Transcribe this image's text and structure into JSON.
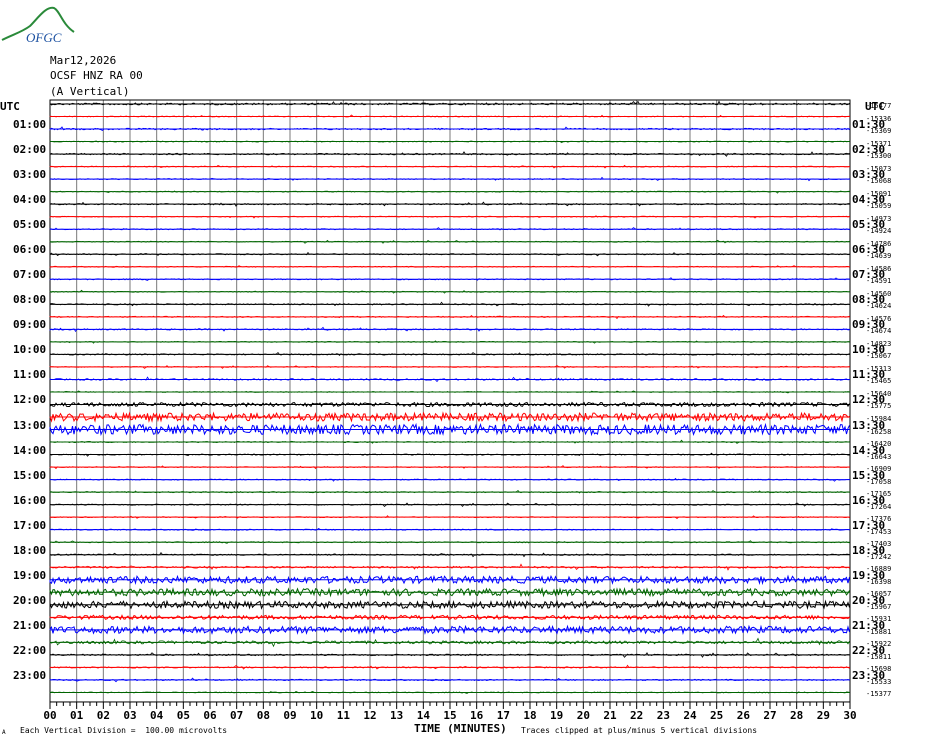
{
  "header": {
    "logo_text": "OFGC",
    "date": "Mar12,2026",
    "station": "OCSF HNZ RA 00",
    "component": "(A Vertical)"
  },
  "left_header": "UTC",
  "right_header": "UTC",
  "colors": {
    "trace_black": "#000000",
    "trace_red": "#ff0000",
    "trace_blue": "#0000ff",
    "trace_green": "#006400",
    "vgrid": "#7a7a7a",
    "logo": "#2a8a3a",
    "logo_text": "#1a4fa0"
  },
  "chart_data": {
    "type": "line",
    "title": "",
    "xlabel": "TIME (MINUTES)",
    "xlim": [
      0,
      30
    ],
    "x_ticks": [
      "00",
      "01",
      "02",
      "03",
      "04",
      "05",
      "06",
      "07",
      "08",
      "09",
      "10",
      "11",
      "12",
      "13",
      "14",
      "15",
      "16",
      "17",
      "18",
      "19",
      "20",
      "21",
      "22",
      "23",
      "24",
      "25",
      "26",
      "27",
      "28",
      "29",
      "30"
    ],
    "left_hour_labels": [
      "01:00",
      "02:00",
      "03:00",
      "04:00",
      "05:00",
      "06:00",
      "07:00",
      "08:00",
      "09:00",
      "10:00",
      "11:00",
      "12:00",
      "13:00",
      "14:00",
      "15:00",
      "16:00",
      "17:00",
      "18:00",
      "19:00",
      "20:00",
      "21:00",
      "22:00",
      "23:00"
    ],
    "right_hour_labels": [
      "01:30",
      "02:30",
      "03:30",
      "04:30",
      "05:30",
      "06:30",
      "07:30",
      "08:30",
      "09:30",
      "10:30",
      "11:30",
      "12:30",
      "13:30",
      "14:30",
      "15:30",
      "16:30",
      "17:30",
      "18:30",
      "19:30",
      "20:30",
      "21:30",
      "22:30",
      "23:30"
    ],
    "trace_offsets": [
      "-15477",
      "-15336",
      "-15369",
      "-15371",
      "-15300",
      "-15073",
      "-15068",
      "-15091",
      "-15059",
      "-14973",
      "-14924",
      "-14786",
      "-14639",
      "-14586",
      "-14591",
      "-14560",
      "-14624",
      "-14576",
      "-14674",
      "-14823",
      "-15067",
      "-15313",
      "-15465",
      "-15640",
      "-15775",
      "-15984",
      "-16258",
      "-16420",
      "-16643",
      "-16909",
      "-17058",
      "-17165",
      "-17264",
      "-17376",
      "-17453",
      "-17403",
      "-17242",
      "-16889",
      "-16398",
      "-16057",
      "-15967",
      "-15931",
      "-15881",
      "-15922",
      "-15811",
      "-15698",
      "-15533",
      "-15377"
    ],
    "trace_colors": [
      "black",
      "red",
      "blue",
      "green"
    ],
    "trace_count": 48,
    "minutes_per_trace": 30,
    "noise_level_by_trace": [
      1,
      0.5,
      0.8,
      0.5,
      0.8,
      0.5,
      0.6,
      0.5,
      0.7,
      0.5,
      0.6,
      0.5,
      0.6,
      0.5,
      0.6,
      0.5,
      0.7,
      0.6,
      0.7,
      0.5,
      0.7,
      0.5,
      0.8,
      0.5,
      2,
      4,
      5,
      0.6,
      0.6,
      0.5,
      0.6,
      0.6,
      0.6,
      0.5,
      0.6,
      0.6,
      0.7,
      1,
      3.5,
      3.5,
      3.5,
      2,
      3.5,
      1.5,
      0.8,
      0.7,
      0.7,
      0.5
    ]
  },
  "footer": {
    "division": "Each Vertical Division =  100.00 microvolts",
    "clipping": "Traces clipped at plus/minus 5 vertical divisions",
    "corner_mark": "A"
  }
}
